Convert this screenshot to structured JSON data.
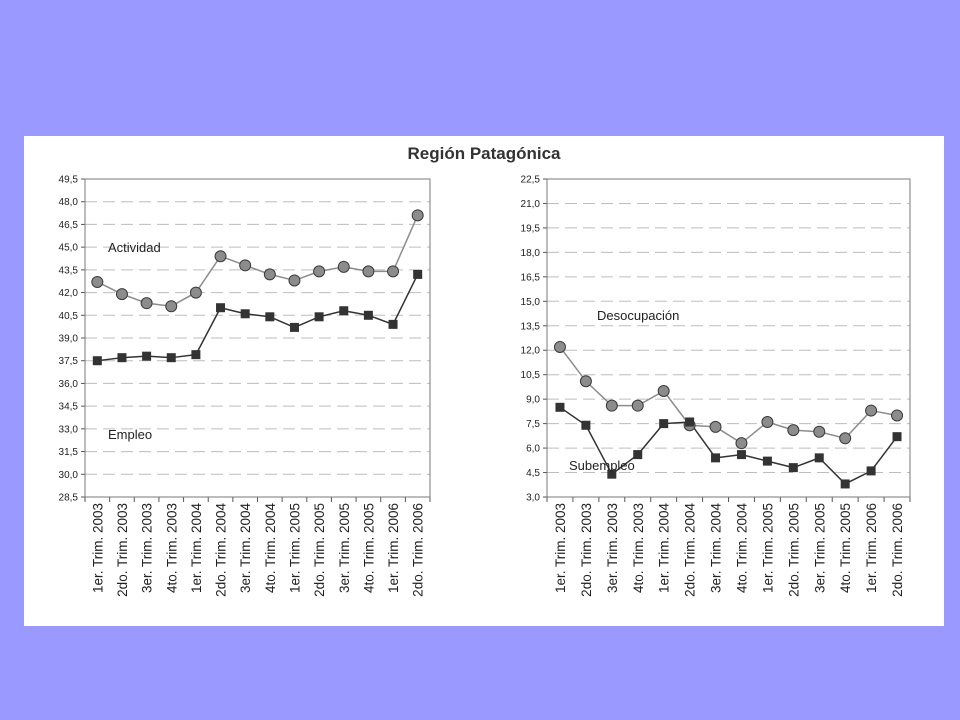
{
  "colors": {
    "background": "#9999ff",
    "panel": "#ffffff",
    "circle_fill": "#8c8c8c",
    "square_fill": "#333333",
    "line_light": "#8c8c8c",
    "line_dark": "#333333"
  },
  "title": "Región Patagónica",
  "chart_data": [
    {
      "type": "line",
      "title": "",
      "xlabel": "",
      "ylabel": "",
      "ylim": [
        28.5,
        49.5
      ],
      "yticks": [
        "49,5",
        "48,0",
        "46,5",
        "45,0",
        "43,5",
        "42,0",
        "40,5",
        "39,0",
        "37,5",
        "36,0",
        "34,5",
        "33,0",
        "31,5",
        "30,0",
        "28,5"
      ],
      "categories": [
        "1er. Trim. 2003",
        "2do. Trim. 2003",
        "3er. Trim. 2003",
        "4to. Trim. 2003",
        "1er. Trim. 2004",
        "2do. Trim. 2004",
        "3er. Trim. 2004",
        "4to. Trim. 2004",
        "1er. Trim. 2005",
        "2do. Trim. 2005",
        "3er. Trim. 2005",
        "4to. Trim. 2005",
        "1er. Trim. 2006",
        "2do. Trim. 2006"
      ],
      "grid": true,
      "series": [
        {
          "name": "Actividad",
          "marker": "circle",
          "values": [
            42.7,
            41.9,
            41.3,
            41.1,
            42.0,
            44.4,
            43.8,
            43.2,
            42.8,
            43.4,
            43.7,
            43.4,
            43.4,
            47.1
          ]
        },
        {
          "name": "Empleo",
          "marker": "square",
          "values": [
            37.5,
            37.7,
            37.8,
            37.7,
            37.9,
            41.0,
            40.6,
            40.4,
            39.7,
            40.4,
            40.8,
            40.5,
            39.9,
            43.2
          ]
        }
      ]
    },
    {
      "type": "line",
      "title": "",
      "xlabel": "",
      "ylabel": "",
      "ylim": [
        3.0,
        22.5
      ],
      "yticks": [
        "22,5",
        "21,0",
        "19,5",
        "18,0",
        "16,5",
        "15,0",
        "13,5",
        "12,0",
        "10,5",
        "9,0",
        "7,5",
        "6,0",
        "4,5",
        "3,0"
      ],
      "categories": [
        "1er. Trim. 2003",
        "2do. Trim. 2003",
        "3er. Trim. 2003",
        "4to. Trim. 2003",
        "1er. Trim. 2004",
        "2do. Trim. 2004",
        "3er. Trim. 2004",
        "4to. Trim. 2004",
        "1er. Trim. 2005",
        "2do. Trim. 2005",
        "3er. Trim. 2005",
        "4to. Trim. 2005",
        "1er. Trim. 2006",
        "2do. Trim. 2006"
      ],
      "grid": true,
      "series": [
        {
          "name": "Desocupación",
          "marker": "circle",
          "values": [
            12.2,
            10.1,
            8.6,
            8.6,
            9.5,
            7.4,
            7.3,
            6.3,
            7.6,
            7.1,
            7.0,
            6.6,
            8.3,
            8.0
          ]
        },
        {
          "name": "Subempleo",
          "marker": "square",
          "values": [
            8.5,
            7.4,
            4.4,
            5.6,
            7.5,
            7.6,
            5.4,
            5.6,
            5.2,
            4.8,
            5.4,
            3.8,
            4.6,
            6.7
          ]
        }
      ]
    }
  ]
}
